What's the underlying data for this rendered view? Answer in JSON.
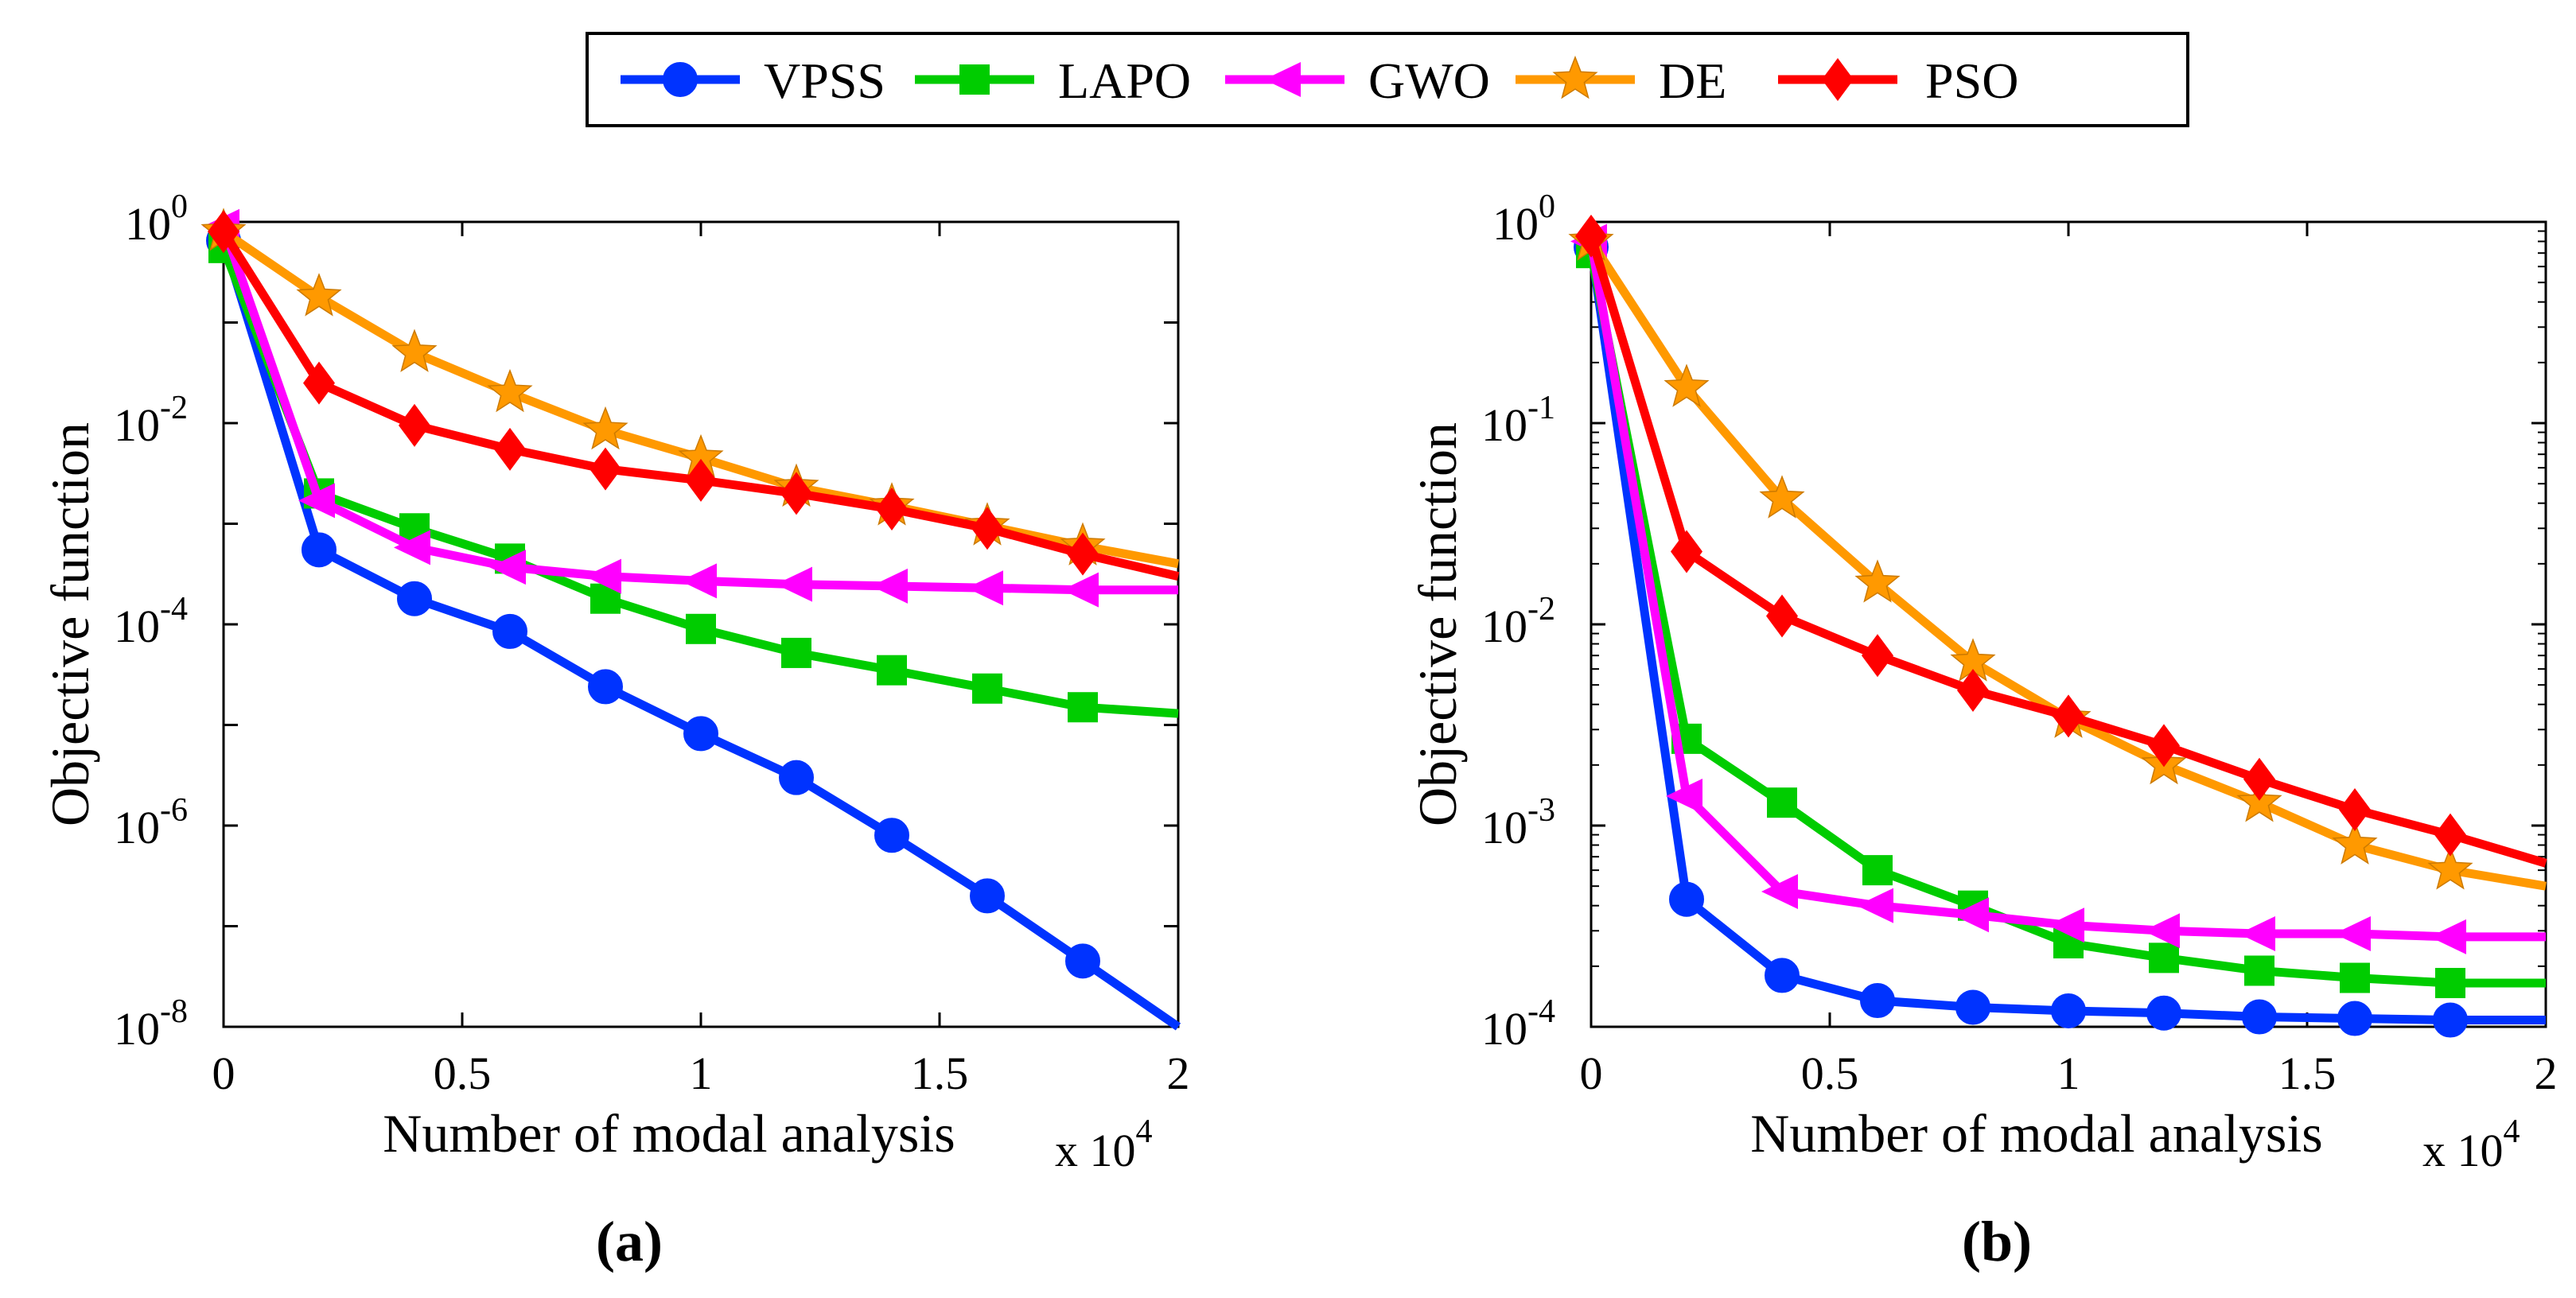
{
  "legend": [
    {
      "name": "VPSS",
      "color": "#0033ff",
      "marker": "circle"
    },
    {
      "name": "LAPO",
      "color": "#00cc00",
      "marker": "square"
    },
    {
      "name": "GWO",
      "color": "#ff00ff",
      "marker": "triangle-left"
    },
    {
      "name": "DE",
      "color": "#ff9900",
      "marker": "star"
    },
    {
      "name": "PSO",
      "color": "#ff0000",
      "marker": "diamond"
    }
  ],
  "chart_data": [
    {
      "type": "line",
      "subplot_label": "(a)",
      "xlabel": "Number of modal analysis",
      "ylabel": "Objective function",
      "x_multiplier": "x 10",
      "x_multiplier_exp": "4",
      "yscale": "log",
      "xlim": [
        0,
        2
      ],
      "ylim_exp": [
        -8,
        0
      ],
      "x_ticks": [
        "0",
        "0.5",
        "1",
        "1.5",
        "2"
      ],
      "y_ticks": [
        {
          "exp": 0,
          "base": "10",
          "sup": "0"
        },
        {
          "exp": -2,
          "base": "10",
          "sup": "-2"
        },
        {
          "exp": -4,
          "base": "10",
          "sup": "-4"
        },
        {
          "exp": -6,
          "base": "10",
          "sup": "-6"
        },
        {
          "exp": -8,
          "base": "10",
          "sup": "-8"
        }
      ],
      "x": [
        0,
        0.2,
        0.4,
        0.6,
        0.8,
        1.0,
        1.2,
        1.4,
        1.6,
        1.8,
        2.0
      ],
      "series": [
        {
          "name": "VPSS",
          "values": [
            0.65,
            0.00055,
            0.00018,
            8.5e-05,
            2.4e-05,
            8.2e-06,
            3e-06,
            8e-07,
            2e-07,
            4.5e-08,
            1e-08
          ]
        },
        {
          "name": "LAPO",
          "values": [
            0.55,
            0.002,
            0.0009,
            0.00045,
            0.00018,
            9e-05,
            5.2e-05,
            3.5e-05,
            2.3e-05,
            1.5e-05,
            1.3e-05
          ]
        },
        {
          "name": "GWO",
          "values": [
            0.9,
            0.0017,
            0.00058,
            0.00037,
            0.0003,
            0.00027,
            0.00025,
            0.00024,
            0.00023,
            0.00022,
            0.00022
          ]
        },
        {
          "name": "DE",
          "values": [
            0.8,
            0.18,
            0.05,
            0.02,
            0.0085,
            0.0045,
            0.0023,
            0.0015,
            0.00095,
            0.0006,
            0.0004
          ]
        },
        {
          "name": "PSO",
          "values": [
            0.8,
            0.025,
            0.0095,
            0.0055,
            0.0035,
            0.0027,
            0.002,
            0.0014,
            0.0009,
            0.0005,
            0.0003
          ]
        }
      ]
    },
    {
      "type": "line",
      "subplot_label": "(b)",
      "xlabel": "Number of modal analysis",
      "ylabel": "Objective function",
      "x_multiplier": "x 10",
      "x_multiplier_exp": "4",
      "yscale": "log",
      "xlim": [
        0,
        2
      ],
      "ylim_exp": [
        -4,
        0
      ],
      "x_ticks": [
        "0",
        "0.5",
        "1",
        "1.5",
        "2"
      ],
      "y_ticks": [
        {
          "exp": 0,
          "base": "10",
          "sup": "0"
        },
        {
          "exp": -1,
          "base": "10",
          "sup": "-1"
        },
        {
          "exp": -2,
          "base": "10",
          "sup": "-2"
        },
        {
          "exp": -3,
          "base": "10",
          "sup": "-3"
        },
        {
          "exp": -4,
          "base": "10",
          "sup": "-4"
        }
      ],
      "x": [
        0,
        0.2,
        0.4,
        0.6,
        0.8,
        1.0,
        1.2,
        1.4,
        1.6,
        1.8,
        2.0
      ],
      "series": [
        {
          "name": "VPSS",
          "values": [
            0.75,
            0.00043,
            0.00018,
            0.000135,
            0.000125,
            0.00012,
            0.000117,
            0.000112,
            0.00011,
            0.000108,
            0.000108
          ]
        },
        {
          "name": "LAPO",
          "values": [
            0.7,
            0.0027,
            0.0013,
            0.0006,
            0.0004,
            0.00026,
            0.00022,
            0.00019,
            0.000175,
            0.000165,
            0.000165
          ]
        },
        {
          "name": "GWO",
          "values": [
            0.8,
            0.0014,
            0.00047,
            0.0004,
            0.00036,
            0.00032,
            0.0003,
            0.00029,
            0.00029,
            0.00028,
            0.00028
          ]
        },
        {
          "name": "DE",
          "values": [
            0.8,
            0.15,
            0.042,
            0.016,
            0.0065,
            0.0034,
            0.002,
            0.0013,
            0.0008,
            0.0006,
            0.0005
          ]
        },
        {
          "name": "PSO",
          "values": [
            0.85,
            0.023,
            0.011,
            0.007,
            0.0047,
            0.0035,
            0.0025,
            0.0017,
            0.0012,
            0.0009,
            0.00065
          ]
        }
      ]
    }
  ]
}
